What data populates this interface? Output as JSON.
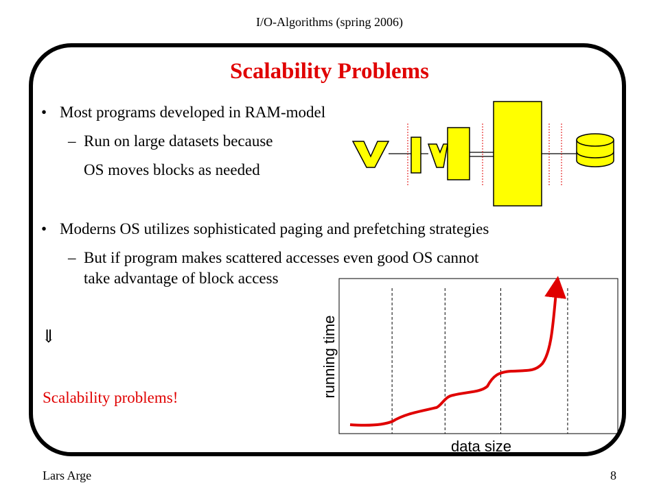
{
  "header": {
    "course": "I/O-Algorithms (spring 2006)"
  },
  "slide": {
    "title": "Scalability Problems",
    "bullets": [
      "Most programs developed in RAM-model",
      "Moderns OS utilizes sophisticated paging and prefetching strategies"
    ],
    "sub1": [
      "Run on large datasets because",
      "OS moves blocks as needed"
    ],
    "sub2": [
      "But if program makes scattered accesses even good OS cannot",
      "take advantage of block access"
    ],
    "bullet_char": "•",
    "dash_char": "–",
    "arrow": "⇓",
    "conclusion": "Scalability problems!"
  },
  "footer": {
    "author": "Lars Arge",
    "page": "8"
  },
  "chart_data": {
    "type": "line",
    "xlabel": "data size",
    "ylabel": "running time",
    "color": "#e00000",
    "region_boundaries": [
      0.19,
      0.38,
      0.58,
      0.82
    ]
  },
  "colors": {
    "accent": "#e00000",
    "memory_fill": "#ffff00",
    "outline": "#000000"
  }
}
